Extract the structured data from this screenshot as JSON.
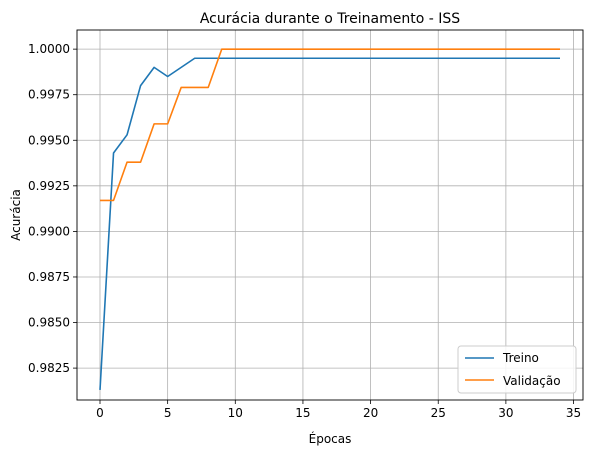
{
  "chart_data": {
    "type": "line",
    "title": "Acurácia durante o Treinamento - ISS",
    "xlabel": "Épocas",
    "ylabel": "Acurácia",
    "xlim": [
      -1.7,
      35.7
    ],
    "ylim": [
      0.98075,
      1.00105
    ],
    "xticks": [
      0,
      5,
      10,
      15,
      20,
      25,
      30,
      35
    ],
    "xtick_labels": [
      "0",
      "5",
      "10",
      "15",
      "20",
      "25",
      "30",
      "35"
    ],
    "yticks": [
      0.9825,
      0.985,
      0.9875,
      0.99,
      0.9925,
      0.995,
      0.9975,
      1.0
    ],
    "ytick_labels": [
      "0.9825",
      "0.9850",
      "0.9875",
      "0.9900",
      "0.9925",
      "0.9950",
      "0.9975",
      "1.0000"
    ],
    "grid": true,
    "legend_position": "lower-right",
    "series": [
      {
        "name": "Treino",
        "color": "#1f77b4",
        "x": [
          0,
          1,
          2,
          3,
          4,
          5,
          6,
          7,
          8,
          9,
          10,
          11,
          12,
          13,
          14,
          15,
          16,
          17,
          18,
          19,
          20,
          21,
          22,
          23,
          24,
          25,
          26,
          27,
          28,
          29,
          30,
          31,
          32,
          33,
          34
        ],
        "y": [
          0.9813,
          0.9943,
          0.9953,
          0.998,
          0.999,
          0.9985,
          0.999,
          0.9995,
          0.9995,
          0.9995,
          0.9995,
          0.9995,
          0.9995,
          0.9995,
          0.9995,
          0.9995,
          0.9995,
          0.9995,
          0.9995,
          0.9995,
          0.9995,
          0.9995,
          0.9995,
          0.9995,
          0.9995,
          0.9995,
          0.9995,
          0.9995,
          0.9995,
          0.9995,
          0.9995,
          0.9995,
          0.9995,
          0.9995,
          0.9995
        ]
      },
      {
        "name": "Validação",
        "color": "#ff7f0e",
        "x": [
          0,
          1,
          2,
          3,
          4,
          5,
          6,
          7,
          8,
          9,
          10,
          11,
          12,
          13,
          14,
          15,
          16,
          17,
          18,
          19,
          20,
          21,
          22,
          23,
          24,
          25,
          26,
          27,
          28,
          29,
          30,
          31,
          32,
          33,
          34
        ],
        "y": [
          0.9917,
          0.9917,
          0.9938,
          0.9938,
          0.9959,
          0.9959,
          0.9979,
          0.9979,
          0.9979,
          1.0,
          1.0,
          1.0,
          1.0,
          1.0,
          1.0,
          1.0,
          1.0,
          1.0,
          1.0,
          1.0,
          1.0,
          1.0,
          1.0,
          1.0,
          1.0,
          1.0,
          1.0,
          1.0,
          1.0,
          1.0,
          1.0,
          1.0,
          1.0,
          1.0,
          1.0
        ]
      }
    ]
  }
}
